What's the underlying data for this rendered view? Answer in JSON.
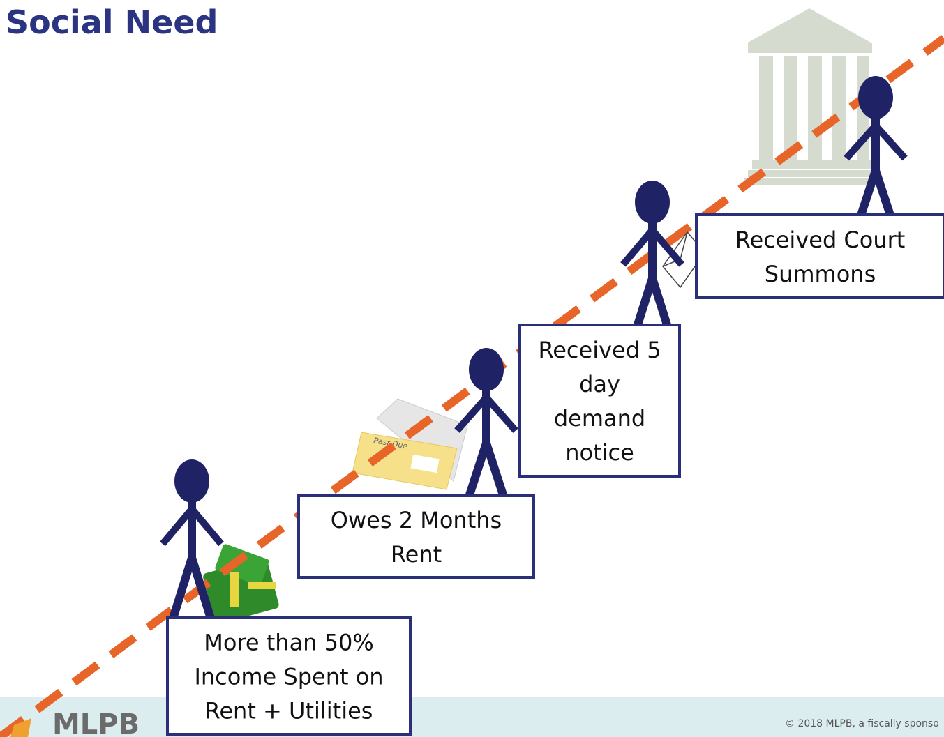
{
  "header": {
    "title": "Social Need"
  },
  "steps": [
    {
      "lines": [
        "More than 50%",
        "Income Spent on",
        "Rent + Utilities"
      ]
    },
    {
      "lines": [
        "Owes 2 Months",
        "Rent"
      ]
    },
    {
      "lines": [
        "Received 5",
        "day",
        "demand",
        "notice"
      ]
    },
    {
      "lines": [
        "Received Court",
        "Summons"
      ]
    }
  ],
  "props": {
    "envelope_text": "Past Due"
  },
  "footer": {
    "logo": "MLPB",
    "copyright": "© 2018 MLPB, a fiscally sponso"
  }
}
